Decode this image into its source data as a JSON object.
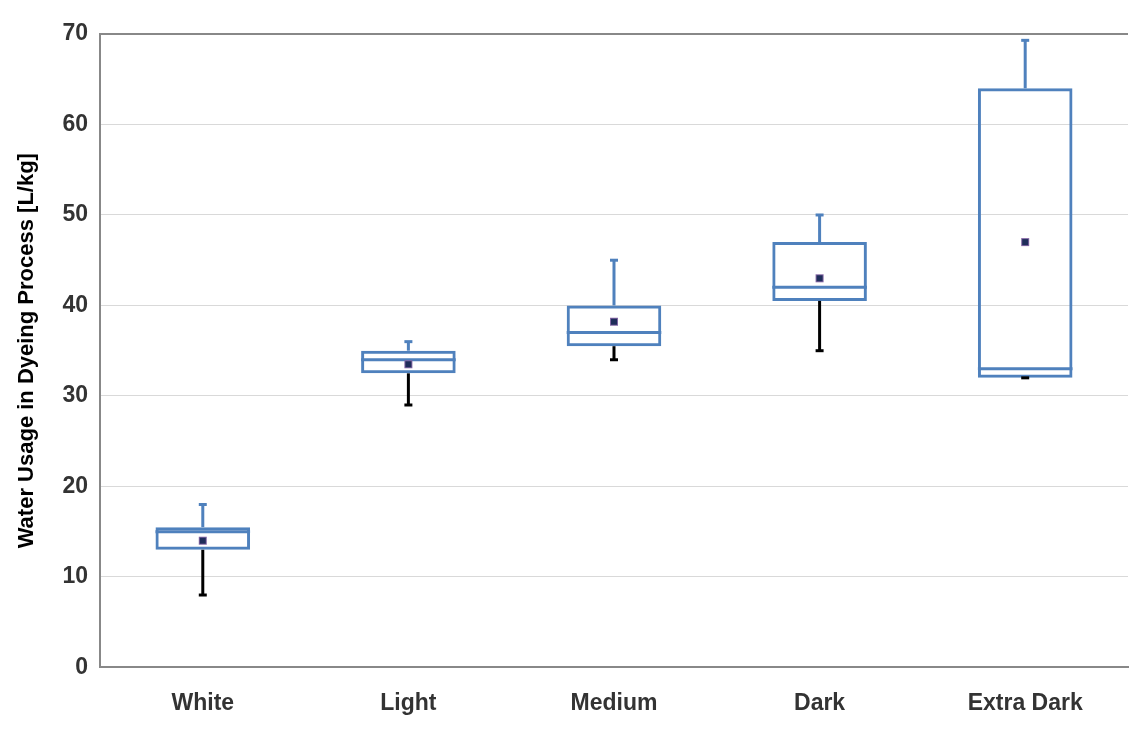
{
  "chart_data": {
    "type": "box",
    "ylabel": "Water Usage in Dyeing Process [L/kg]",
    "categories": [
      "White",
      "Light",
      "Medium",
      "Dark",
      "Extra Dark"
    ],
    "series": [
      {
        "color": "#4f81bd",
        "boxes": [
          {
            "low": 8,
            "q1": 13,
            "median": 15,
            "q3": 15.5,
            "high": 18,
            "mean": 14
          },
          {
            "low": 29,
            "q1": 32.5,
            "median": 34,
            "q3": 35,
            "high": 36,
            "mean": 33.5
          },
          {
            "low": 34,
            "q1": 35.5,
            "median": 37,
            "q3": 40,
            "high": 45,
            "mean": 38.2
          },
          {
            "low": 35,
            "q1": 40.5,
            "median": 42,
            "q3": 47,
            "high": 50,
            "mean": 43
          },
          {
            "low": 32,
            "q1": 32,
            "median": 33,
            "q3": 64,
            "high": 69.3,
            "mean": 47
          }
        ]
      }
    ],
    "ylim": [
      0,
      70
    ],
    "yticks": [
      0,
      10,
      20,
      30,
      40,
      50,
      60,
      70
    ],
    "grid": "y",
    "legend": false
  }
}
